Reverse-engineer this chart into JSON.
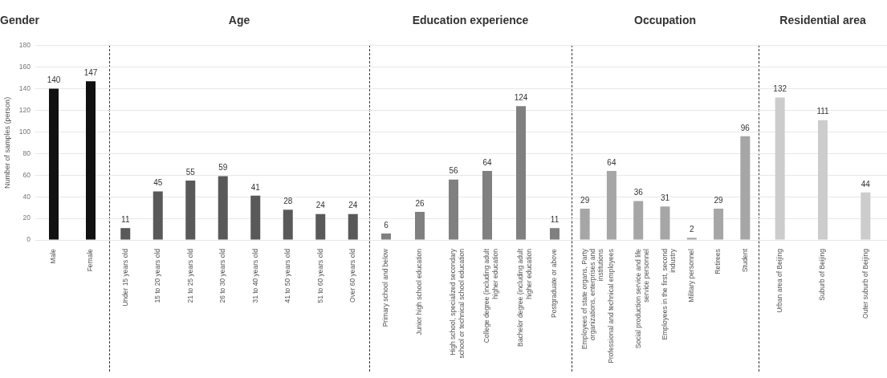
{
  "chart_data": [
    {
      "type": "bar",
      "title": "Gender",
      "ylabel": "Number of samples (person)",
      "categories": [
        "Male",
        "Female"
      ],
      "values": [
        140,
        147
      ],
      "color": "#111111",
      "data_labels": true,
      "ylim": [
        0,
        180
      ],
      "yticks": [
        0,
        20,
        40,
        60,
        80,
        100,
        120,
        140,
        160,
        180
      ],
      "grid": "y"
    },
    {
      "type": "bar",
      "title": "Age",
      "categories": [
        "Under 15 years old",
        "15 to 20 years old",
        "21 to 25 years old",
        "26 to 30 years old",
        "31 to 40 years old",
        "41 to 50 years old",
        "51 to 60 years old",
        "Over 60 years old"
      ],
      "values": [
        11,
        45,
        55,
        59,
        41,
        28,
        24,
        24
      ],
      "color": "#595959",
      "data_labels": true,
      "ylim": [
        0,
        180
      ],
      "yticks": [
        0,
        20,
        40,
        60,
        80,
        100,
        120,
        140,
        160,
        180
      ],
      "grid": "y",
      "tick_labels": "x"
    },
    {
      "type": "bar",
      "title": "Education experience",
      "categories": [
        "Primary school and below",
        "Junior high school education",
        "High school, specialized secondary school or technical school education",
        "College degree (including adult higher education",
        "Bachelor degree (including adult higher education",
        "Postgraduate or above"
      ],
      "values": [
        6,
        26,
        56,
        64,
        124,
        11
      ],
      "color": "#808080",
      "data_labels": true,
      "ylim": [
        0,
        180
      ],
      "yticks": [
        0,
        20,
        40,
        60,
        80,
        100,
        120,
        140,
        160,
        180
      ],
      "grid": "y",
      "tick_labels": "x"
    },
    {
      "type": "bar",
      "title": "Occupation",
      "categories": [
        "Employees of state organs, Party organizations, enterprises and institutions",
        "Professional and technical employees",
        "Social production service and life service personnel",
        "Employees in the first, second industry",
        "Military personnel",
        "Retirees",
        "Student"
      ],
      "values": [
        29,
        64,
        36,
        31,
        2,
        29,
        96
      ],
      "color": "#a6a6a6",
      "data_labels": true,
      "ylim": [
        0,
        180
      ],
      "yticks": [
        0,
        20,
        40,
        60,
        80,
        100,
        120,
        140,
        160,
        180
      ],
      "grid": "y",
      "tick_labels": "x"
    },
    {
      "type": "bar",
      "title": "Residential area",
      "categories": [
        "Urban area of Beijing",
        "Suburb of Beijing",
        "Outer suburb of Beijing"
      ],
      "values": [
        132,
        111,
        44
      ],
      "color": "#cccccc",
      "data_labels": true,
      "ylim": [
        0,
        180
      ],
      "yticks": [
        0,
        20,
        40,
        60,
        80,
        100,
        120,
        140,
        160,
        180
      ],
      "grid": "y",
      "tick_labels": "x"
    }
  ]
}
